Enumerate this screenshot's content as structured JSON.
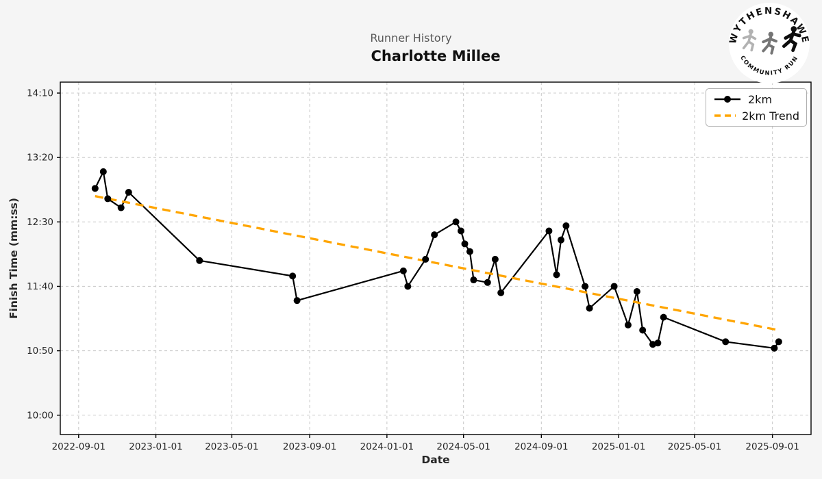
{
  "header": {
    "subtitle": "Runner History",
    "title": "Charlotte Millee"
  },
  "logo": {
    "top_text": "WYTHENSHAWE",
    "bottom_text": "COMMUNITY RUN"
  },
  "chart_data": {
    "type": "line",
    "title": "Runner History",
    "subtitle": "Charlotte Millee",
    "xlabel": "Date",
    "ylabel": "Finish Time (mm:ss)",
    "grid": true,
    "legend": {
      "position": "upper right",
      "entries": [
        {
          "label": "2km",
          "color": "#000000",
          "style": "solid-marker"
        },
        {
          "label": "2km Trend",
          "color": "#FFA500",
          "style": "dashed"
        }
      ]
    },
    "xlim": [
      "2022-08-03",
      "2025-11-01"
    ],
    "ylim_seconds": [
      585,
      858.5
    ],
    "x_ticks": [
      "2022-09-01",
      "2023-01-01",
      "2023-05-01",
      "2023-09-01",
      "2024-01-01",
      "2024-05-01",
      "2024-09-01",
      "2025-01-01",
      "2025-05-01",
      "2025-09-01"
    ],
    "y_ticks": [
      {
        "label": "14:10",
        "seconds": 850
      },
      {
        "label": "13:20",
        "seconds": 800
      },
      {
        "label": "12:30",
        "seconds": 750
      },
      {
        "label": "11:40",
        "seconds": 700
      },
      {
        "label": "10:50",
        "seconds": 650
      },
      {
        "label": "10:00",
        "seconds": 600
      }
    ],
    "series": [
      {
        "name": "2km",
        "color": "#000000",
        "marker": "circle",
        "points": [
          {
            "date": "2022-09-27",
            "time": "12:56"
          },
          {
            "date": "2022-10-10",
            "time": "13:09"
          },
          {
            "date": "2022-10-17",
            "time": "12:48"
          },
          {
            "date": "2022-11-07",
            "time": "12:41"
          },
          {
            "date": "2022-11-19",
            "time": "12:53"
          },
          {
            "date": "2023-03-11",
            "time": "12:00"
          },
          {
            "date": "2023-08-05",
            "time": "11:48"
          },
          {
            "date": "2023-08-12",
            "time": "11:29"
          },
          {
            "date": "2024-01-27",
            "time": "11:52"
          },
          {
            "date": "2024-02-03",
            "time": "11:40"
          },
          {
            "date": "2024-03-02",
            "time": "12:01"
          },
          {
            "date": "2024-03-16",
            "time": "12:20"
          },
          {
            "date": "2024-04-19",
            "time": "12:30"
          },
          {
            "date": "2024-04-27",
            "time": "12:23"
          },
          {
            "date": "2024-05-03",
            "time": "12:13"
          },
          {
            "date": "2024-05-11",
            "time": "12:07"
          },
          {
            "date": "2024-05-17",
            "time": "11:45"
          },
          {
            "date": "2024-06-08",
            "time": "11:43"
          },
          {
            "date": "2024-06-20",
            "time": "12:01"
          },
          {
            "date": "2024-06-29",
            "time": "11:35"
          },
          {
            "date": "2024-09-13",
            "time": "12:23"
          },
          {
            "date": "2024-09-25",
            "time": "11:49"
          },
          {
            "date": "2024-10-02",
            "time": "12:16"
          },
          {
            "date": "2024-10-10",
            "time": "12:27"
          },
          {
            "date": "2024-11-09",
            "time": "11:40"
          },
          {
            "date": "2024-11-16",
            "time": "11:23"
          },
          {
            "date": "2024-12-25",
            "time": "11:40"
          },
          {
            "date": "2025-01-16",
            "time": "11:10"
          },
          {
            "date": "2025-01-30",
            "time": "11:36"
          },
          {
            "date": "2025-02-08",
            "time": "11:06"
          },
          {
            "date": "2025-02-24",
            "time": "10:55"
          },
          {
            "date": "2025-03-04",
            "time": "10:56"
          },
          {
            "date": "2025-03-13",
            "time": "11:16"
          },
          {
            "date": "2025-06-19",
            "time": "10:57"
          },
          {
            "date": "2025-09-04",
            "time": "10:52"
          },
          {
            "date": "2025-09-11",
            "time": "10:57"
          }
        ]
      },
      {
        "name": "2km Trend",
        "color": "#FFA500",
        "style": "dashed",
        "points": [
          {
            "date": "2022-09-27",
            "time": "12:50"
          },
          {
            "date": "2025-09-11",
            "time": "11:06"
          }
        ]
      }
    ],
    "colors": {
      "figure_background": "#f5f5f5",
      "plot_background": "#ffffff",
      "gridline": "#cccccc",
      "spine": "#000000",
      "line": "#000000",
      "trend": "#FFA500",
      "tick_text": "#262626",
      "subtitle_text": "#595959",
      "title_text": "#101010"
    }
  }
}
